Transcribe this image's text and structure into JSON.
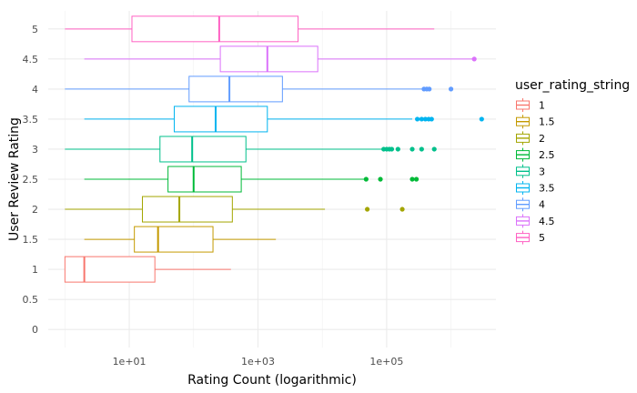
{
  "chart_data": {
    "type": "boxplot",
    "orientation": "horizontal",
    "xlabel": "Rating Count (logarithmic)",
    "ylabel": "User Review Rating",
    "x_scale": "log10",
    "xlim": [
      0.55,
      5000000
    ],
    "x_ticks": [
      10,
      1000,
      100000
    ],
    "x_tick_labels": [
      "1e+01",
      "1e+03",
      "1e+05"
    ],
    "ylim": [
      -0.3,
      5.3
    ],
    "y_ticks": [
      0,
      0.5,
      1,
      1.5,
      2,
      2.5,
      3,
      3.5,
      4,
      4.5,
      5
    ],
    "y_tick_labels": [
      "0",
      "0.5",
      "1",
      "1.5",
      "2",
      "2.5",
      "3",
      "3.5",
      "4",
      "4.5",
      "5"
    ],
    "grid": true,
    "legend": {
      "title": "user_rating_string",
      "position": "right"
    },
    "series": [
      {
        "name": "1",
        "y": 1,
        "color": "#F8766D",
        "whisker_low": 1,
        "q1": 1,
        "median": 2,
        "q3": 25,
        "whisker_high": 380,
        "outliers": []
      },
      {
        "name": "1.5",
        "y": 1.5,
        "color": "#C49A00",
        "whisker_low": 2,
        "q1": 12,
        "median": 28,
        "q3": 200,
        "whisker_high": 1900,
        "outliers": []
      },
      {
        "name": "2",
        "y": 2,
        "color": "#A3A500",
        "whisker_low": 1,
        "q1": 16,
        "median": 60,
        "q3": 400,
        "whisker_high": 11000,
        "outliers": [
          50000,
          175000
        ]
      },
      {
        "name": "2.5",
        "y": 2.5,
        "color": "#00BA38",
        "whisker_low": 2,
        "q1": 40,
        "median": 100,
        "q3": 550,
        "whisker_high": 45000,
        "outliers": [
          48000,
          80000,
          250000,
          290000
        ]
      },
      {
        "name": "3",
        "y": 3,
        "color": "#00C08B",
        "whisker_low": 1,
        "q1": 30,
        "median": 95,
        "q3": 650,
        "whisker_high": 85000,
        "outliers": [
          90000,
          100000,
          110000,
          120000,
          150000,
          250000,
          350000,
          550000
        ]
      },
      {
        "name": "3.5",
        "y": 3.5,
        "color": "#00B4F0",
        "whisker_low": 2,
        "q1": 50,
        "median": 220,
        "q3": 1400,
        "whisker_high": 250000,
        "outliers": [
          300000,
          350000,
          400000,
          450000,
          500000,
          3000000
        ]
      },
      {
        "name": "4",
        "y": 4,
        "color": "#619CFF",
        "whisker_low": 1,
        "q1": 85,
        "median": 360,
        "q3": 2400,
        "whisker_high": 350000,
        "outliers": [
          380000,
          420000,
          460000,
          1000000
        ]
      },
      {
        "name": "4.5",
        "y": 4.5,
        "color": "#DB72FB",
        "whisker_low": 2,
        "q1": 260,
        "median": 1400,
        "q3": 8500,
        "whisker_high": 2200000,
        "outliers": [
          2300000
        ]
      },
      {
        "name": "5",
        "y": 5,
        "color": "#FF61C3",
        "whisker_low": 1,
        "q1": 11,
        "median": 250,
        "q3": 4200,
        "whisker_high": 550000,
        "outliers": []
      }
    ]
  }
}
